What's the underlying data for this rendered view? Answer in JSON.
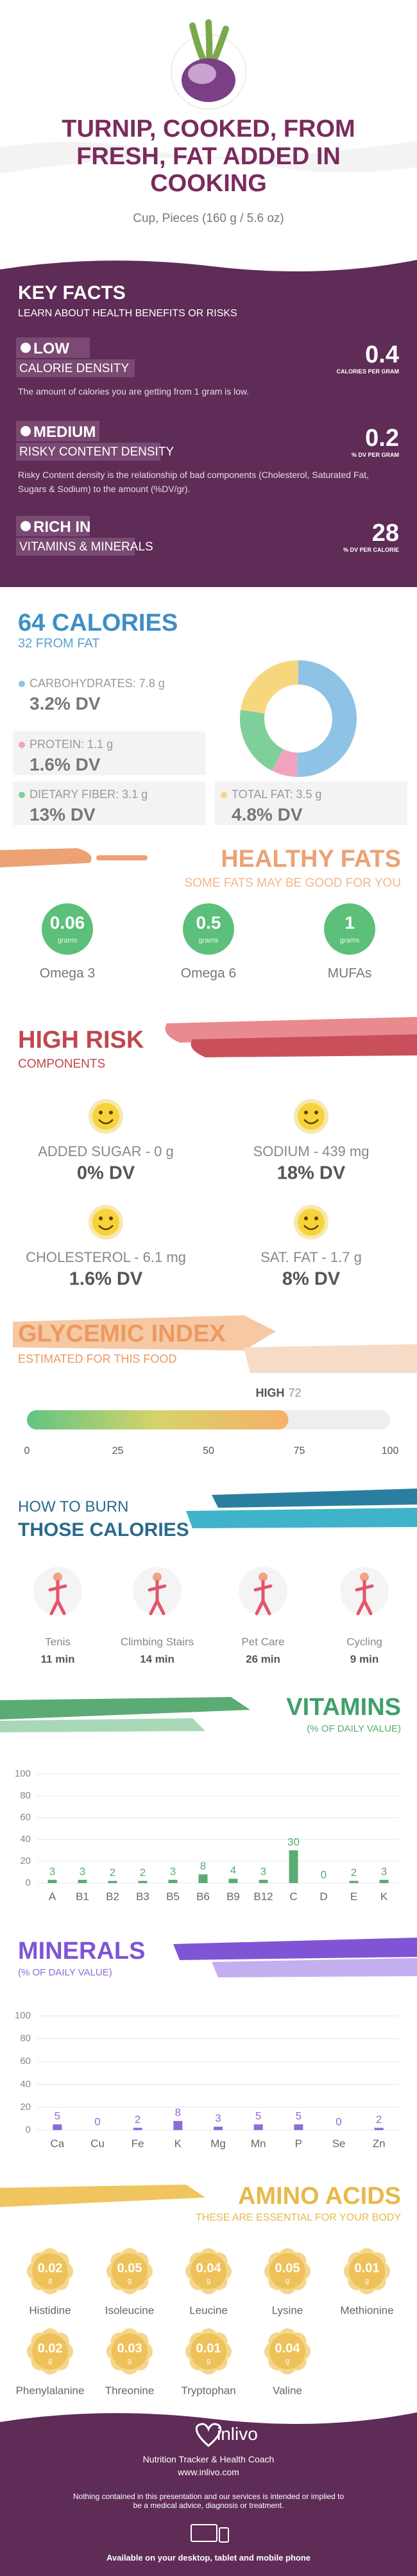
{
  "header": {
    "title": "TURNIP, COOKED, FROM FRESH, FAT ADDED IN COOKING",
    "subtitle": "Cup, Pieces (160 g / 5.6 oz)"
  },
  "key_facts": {
    "title": "KEY FACTS",
    "subtitle": "LEARN ABOUT HEALTH BENEFITS OR RISKS",
    "items": [
      {
        "level": "LOW",
        "label": "CALORIE DENSITY",
        "value": 0.4,
        "unit": "CALORIES PER GRAM",
        "description": "The amount of calories you are getting from 1 gram is low."
      },
      {
        "level": "MEDIUM",
        "label": "RISKY CONTENT DENSITY",
        "value": 0.2,
        "unit": "% DV PER GRAM",
        "description": "Risky Content density is the relationship of bad components (Cholesterol, Saturated Fat, Sugars & Sodium) to the amount (%DV/gr)."
      },
      {
        "level": "RICH IN",
        "label": "VITAMINS & MINERALS",
        "value": 28,
        "unit": "% DV PER CALORIE"
      }
    ]
  },
  "calories": {
    "title": "64 CALORIES",
    "subtitle": "32 FROM FAT",
    "macros": [
      {
        "name": "CARBOHYDRATES:",
        "grams": 7.8,
        "unit": "g",
        "dv": "3.2% DV",
        "color": "#8ec3e6"
      },
      {
        "name": "PROTEIN:",
        "grams": 1.1,
        "unit": "g",
        "dv": "1.6% DV",
        "color": "#f0a3bf"
      },
      {
        "name": "DIETARY FIBER:",
        "grams": 3.1,
        "unit": "g",
        "dv": "13% DV",
        "color": "#7fcf9a"
      },
      {
        "name": "TOTAL FAT:",
        "grams": 3.5,
        "unit": "g",
        "dv": "4.8% DV",
        "color": "#f7d77e"
      }
    ]
  },
  "fats": {
    "title": "HEALTHY FATS",
    "subtitle": "SOME FATS MAY BE GOOD FOR YOU",
    "unit": "grams",
    "items": [
      {
        "name": "Omega 3",
        "value": 0.06
      },
      {
        "name": "Omega 6",
        "value": 0.5
      },
      {
        "name": "MUFAs",
        "value": 1
      }
    ]
  },
  "risk": {
    "title": "HIGH RISK",
    "subtitle": "COMPONENTS",
    "items": [
      {
        "label": "ADDED SUGAR - 0 g",
        "dv": "0% DV"
      },
      {
        "label": "SODIUM - 439 mg",
        "dv": "18% DV"
      },
      {
        "label": "CHOLESTEROL - 6.1 mg",
        "dv": "1.6% DV"
      },
      {
        "label": "SAT. FAT - 1.7 g",
        "dv": "8% DV"
      }
    ]
  },
  "glycemic": {
    "title": "GLYCEMIC INDEX",
    "subtitle": "ESTIMATED FOR THIS FOOD",
    "level": "HIGH",
    "value": 72,
    "xlim": [
      0,
      100
    ],
    "xticks": [
      0,
      25,
      50,
      75,
      100
    ]
  },
  "burn": {
    "title_line1": "HOW TO BURN",
    "title_line2": "THOSE CALORIES",
    "items": [
      {
        "name": "Tenis",
        "time": "11 min"
      },
      {
        "name": "Climbing Stairs",
        "time": "14 min"
      },
      {
        "name": "Pet Care",
        "time": "26 min"
      },
      {
        "name": "Cycling",
        "time": "9 min"
      }
    ]
  },
  "vitamins": {
    "title": "VITAMINS",
    "subtitle": "(% OF DAILY VALUE)",
    "chart_data": {
      "type": "bar",
      "categories": [
        "A",
        "B1",
        "B2",
        "B3",
        "B5",
        "B6",
        "B9",
        "B12",
        "C",
        "D",
        "E",
        "K"
      ],
      "values": [
        3,
        3,
        2,
        2,
        3,
        8,
        4,
        3,
        30,
        0,
        2,
        3
      ],
      "color": "#5aab74",
      "ylim": [
        0,
        100
      ],
      "yticks": [
        0,
        20,
        40,
        60,
        80,
        100
      ],
      "grid": true
    }
  },
  "minerals": {
    "title": "MINERALS",
    "subtitle": "(% OF DAILY VALUE)",
    "chart_data": {
      "type": "bar",
      "categories": [
        "Ca",
        "Cu",
        "Fe",
        "K",
        "Mg",
        "Mn",
        "P",
        "Se",
        "Zn"
      ],
      "values": [
        5,
        0,
        2,
        8,
        3,
        5,
        5,
        0,
        2
      ],
      "color": "#8e6cd8",
      "ylim": [
        0,
        100
      ],
      "yticks": [
        0,
        20,
        40,
        60,
        80,
        100
      ],
      "grid": true
    }
  },
  "amino": {
    "title": "AMINO ACIDS",
    "subtitle": "THESE ARE ESSENTIAL FOR YOUR BODY",
    "unit": "g",
    "items": [
      {
        "name": "Histidine",
        "value": 0.02
      },
      {
        "name": "Isoleucine",
        "value": 0.05
      },
      {
        "name": "Leucine",
        "value": 0.04
      },
      {
        "name": "Lysine",
        "value": 0.05
      },
      {
        "name": "Methionine",
        "value": 0.01
      },
      {
        "name": "Phenylalanine",
        "value": 0.02
      },
      {
        "name": "Threonine",
        "value": 0.03
      },
      {
        "name": "Tryptophan",
        "value": 0.01
      },
      {
        "name": "Valine",
        "value": 0.04
      }
    ]
  },
  "footer": {
    "brand": "inlivo",
    "tagline": "Nutrition Tracker & Health Coach",
    "url": "www.inlivo.com",
    "disclaimer": "Nothing contained in this presentation and our services is intended or implied to be a medical advice, diagnosis or treatment.",
    "availability": "Available on your desktop, tablet and mobile phone"
  }
}
